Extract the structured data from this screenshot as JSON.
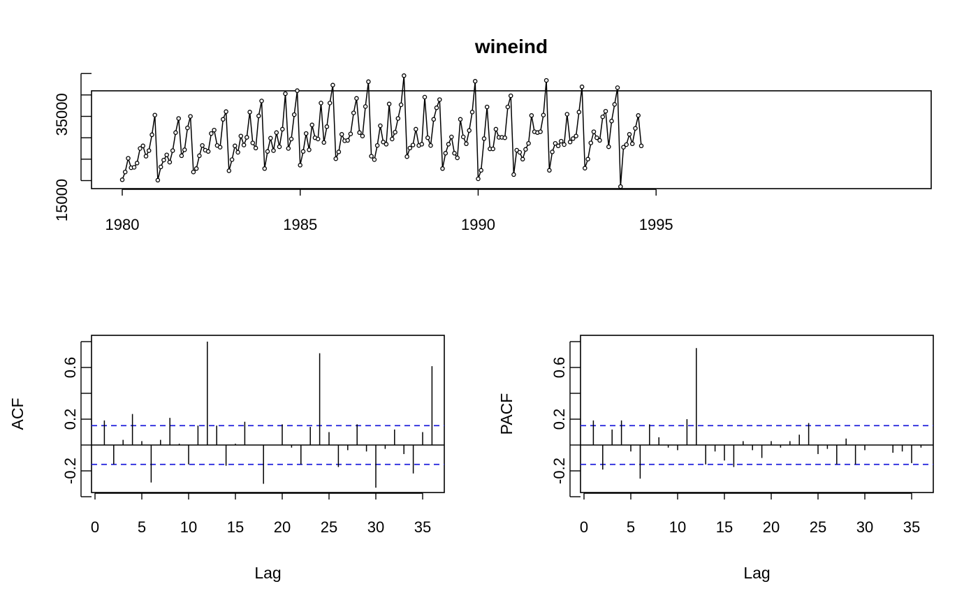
{
  "figure": {
    "title": "wineind"
  },
  "chart_data": [
    {
      "type": "line",
      "title": "wineind",
      "xlabel": "",
      "ylabel": "",
      "x_start": 1980.0,
      "x_step": 0.0833333,
      "xlim": [
        1980,
        1995
      ],
      "ylim": [
        13000,
        40000
      ],
      "xticks": [
        "1980",
        "1985",
        "1990",
        "1995"
      ],
      "yticks": [
        "15000",
        "35000"
      ],
      "y_axis_tick_values": [
        15000,
        20000,
        25000,
        30000,
        35000,
        40000
      ],
      "markers": "open circles",
      "values": [
        15200,
        17000,
        20200,
        18000,
        18100,
        19100,
        22500,
        23100,
        20700,
        22000,
        25700,
        30300,
        15100,
        18200,
        19800,
        21000,
        19300,
        22000,
        26200,
        29500,
        20800,
        22200,
        27300,
        30000,
        17000,
        17800,
        20800,
        23200,
        22100,
        21800,
        26000,
        26800,
        23200,
        22800,
        29300,
        31100,
        17300,
        19900,
        23100,
        21600,
        25400,
        23300,
        25100,
        31000,
        23800,
        22600,
        30100,
        33600,
        17800,
        21800,
        24900,
        22000,
        26200,
        22900,
        27000,
        35300,
        22500,
        24700,
        30400,
        36000,
        18600,
        21800,
        26000,
        22200,
        28000,
        25000,
        24700,
        33100,
        23900,
        27600,
        33100,
        37300,
        20100,
        21700,
        25800,
        24300,
        24400,
        25900,
        30800,
        34200,
        26200,
        25400,
        32300,
        38100,
        20700,
        19900,
        23200,
        27800,
        24000,
        23500,
        32900,
        24700,
        26300,
        29500,
        32700,
        39500,
        20600,
        22600,
        23300,
        27000,
        23200,
        23500,
        34500,
        25000,
        23200,
        29300,
        32000,
        33900,
        17800,
        21400,
        23500,
        25200,
        21400,
        20300,
        29300,
        25200,
        23600,
        26700,
        31000,
        38200,
        15400,
        17400,
        24800,
        32200,
        22400,
        22400,
        27000,
        25100,
        25100,
        25000,
        32200,
        34800,
        16400,
        22100,
        21600,
        20000,
        22300,
        23700,
        30200,
        26400,
        26200,
        26400,
        30300,
        38400,
        17400,
        21700,
        23700,
        23100,
        24200,
        23400,
        30500,
        24000,
        24800,
        25400,
        31000,
        36900,
        17900,
        20000,
        23800,
        26400,
        25000,
        24400,
        29900,
        31200,
        22900,
        28900,
        32800,
        36700,
        13600,
        22800,
        23400,
        25800,
        23600,
        27200,
        30200,
        23100
      ]
    },
    {
      "type": "bar",
      "xlabel": "Lag",
      "ylabel": "ACF",
      "xlim": [
        0,
        37
      ],
      "ylim": [
        -0.37,
        0.8
      ],
      "xticks": [
        "0",
        "5",
        "10",
        "15",
        "20",
        "25",
        "30",
        "35"
      ],
      "yticks": [
        "-0.2",
        "0.2",
        "0.6"
      ],
      "ci": 0.15,
      "lags": [
        1,
        2,
        3,
        4,
        5,
        6,
        7,
        8,
        9,
        10,
        11,
        12,
        13,
        14,
        15,
        16,
        17,
        18,
        19,
        20,
        21,
        22,
        23,
        24,
        25,
        26,
        27,
        28,
        29,
        30,
        31,
        32,
        33,
        34,
        35,
        36
      ],
      "values": [
        0.19,
        -0.15,
        0.04,
        0.24,
        0.03,
        -0.29,
        0.04,
        0.21,
        0.01,
        -0.15,
        0.15,
        0.8,
        0.15,
        -0.16,
        0.01,
        0.18,
        0.0,
        -0.3,
        0.0,
        0.16,
        -0.02,
        -0.15,
        0.14,
        0.71,
        0.1,
        -0.17,
        -0.04,
        0.16,
        -0.05,
        -0.33,
        -0.03,
        0.12,
        -0.07,
        -0.22,
        0.1,
        0.61
      ]
    },
    {
      "type": "bar",
      "xlabel": "Lag",
      "ylabel": "PACF",
      "xlim": [
        0,
        37
      ],
      "ylim": [
        -0.37,
        0.8
      ],
      "xticks": [
        "0",
        "5",
        "10",
        "15",
        "20",
        "25",
        "30",
        "35"
      ],
      "yticks": [
        "-0.2",
        "0.2",
        "0.6"
      ],
      "ci": 0.15,
      "lags": [
        1,
        2,
        3,
        4,
        5,
        6,
        7,
        8,
        9,
        10,
        11,
        12,
        13,
        14,
        15,
        16,
        17,
        18,
        19,
        20,
        21,
        22,
        23,
        24,
        25,
        26,
        27,
        28,
        29,
        30,
        31,
        32,
        33,
        34,
        35,
        36
      ],
      "values": [
        0.19,
        -0.19,
        0.12,
        0.19,
        -0.05,
        -0.26,
        0.16,
        0.06,
        -0.02,
        -0.04,
        0.2,
        0.75,
        -0.15,
        -0.05,
        -0.12,
        -0.17,
        0.03,
        -0.04,
        -0.1,
        0.03,
        -0.02,
        0.03,
        0.08,
        0.17,
        -0.07,
        -0.03,
        -0.15,
        0.05,
        -0.15,
        -0.04,
        0.0,
        0.0,
        -0.06,
        -0.05,
        -0.14,
        -0.02
      ]
    }
  ]
}
